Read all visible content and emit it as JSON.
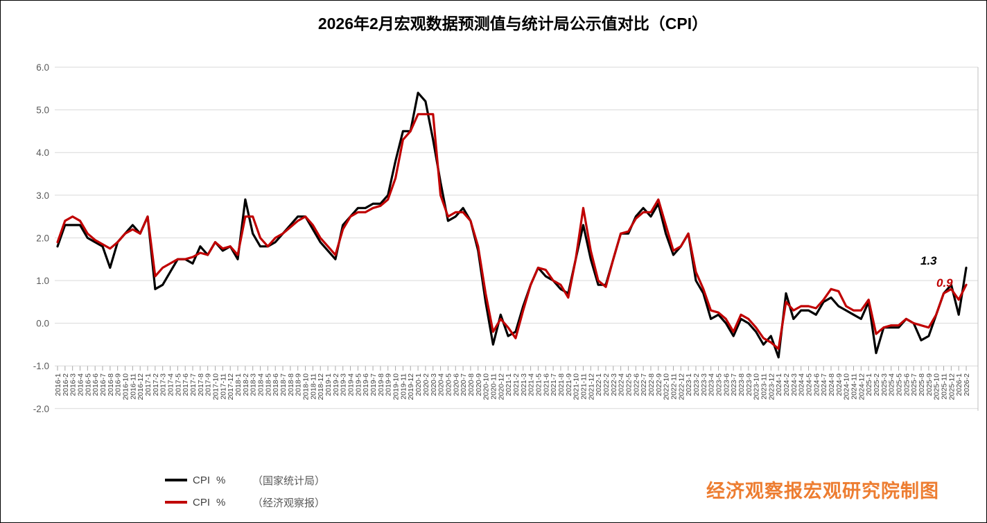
{
  "title": "2026年2月宏观数据预测值与统计局公示值对比（CPI）",
  "watermark": "经济观察报宏观研究院制图",
  "legend": [
    {
      "name": "CPI",
      "unit": "%",
      "source": "（国家统计局）",
      "color": "#000000"
    },
    {
      "name": "CPI",
      "unit": "%",
      "source": "（经济观察报）",
      "color": "#C00000"
    }
  ],
  "annotations": [
    {
      "text": "1.3",
      "series": "国家统计局",
      "color": "#000000"
    },
    {
      "text": "0.9",
      "series": "经济观察报",
      "color": "#C00000"
    }
  ],
  "colors": {
    "official_line": "#000000",
    "forecast_line": "#C00000",
    "gridline": "#D9D9D9",
    "axis_tick": "#A6A6A6",
    "axis_label": "#595959",
    "x_label": "#3F3F3F",
    "watermark": "#ED7D31",
    "background": "#FFFFFF"
  },
  "chart_data": {
    "type": "line",
    "title": "2026年2月宏观数据预测值与统计局公示值对比（CPI）",
    "xlabel": "",
    "ylabel": "",
    "ylim": [
      -2.0,
      6.0
    ],
    "yticks": [
      6.0,
      5.0,
      4.0,
      3.0,
      2.0,
      1.0,
      0.0,
      -1.0,
      -2.0
    ],
    "ytick_labels": [
      "6.0",
      "5.0",
      "4.0",
      "3.0",
      "2.0",
      "1.0",
      "0.0",
      "-1.0",
      "-2.0"
    ],
    "grid": true,
    "legend_position": "bottom-left",
    "x": [
      "2016-1",
      "2016-2",
      "2016-3",
      "2016-4",
      "2016-5",
      "2016-6",
      "2016-7",
      "2016-8",
      "2016-9",
      "2016-10",
      "2016-11",
      "2016-12",
      "2017-1",
      "2017-2",
      "2017-3",
      "2017-4",
      "2017-5",
      "2017-6",
      "2017-7",
      "2017-8",
      "2017-9",
      "2017-10",
      "2017-11",
      "2017-12",
      "2018-1",
      "2018-2",
      "2018-3",
      "2018-4",
      "2018-5",
      "2018-6",
      "2018-7",
      "2018-8",
      "2018-9",
      "2018-10",
      "2018-11",
      "2018-12",
      "2019-1",
      "2019-2",
      "2019-3",
      "2019-4",
      "2019-5",
      "2019-6",
      "2019-7",
      "2019-8",
      "2019-9",
      "2019-10",
      "2019-11",
      "2019-12",
      "2020-1",
      "2020-2",
      "2020-3",
      "2020-4",
      "2020-5",
      "2020-6",
      "2020-7",
      "2020-8",
      "2020-9",
      "2020-10",
      "2020-11",
      "2020-12",
      "2021-1",
      "2021-2",
      "2021-3",
      "2021-4",
      "2021-5",
      "2021-6",
      "2021-7",
      "2021-8",
      "2021-9",
      "2021-10",
      "2021-11",
      "2021-12",
      "2022-1",
      "2022-2",
      "2022-3",
      "2022-4",
      "2022-5",
      "2022-6",
      "2022-7",
      "2022-8",
      "2022-9",
      "2022-10",
      "2022-11",
      "2022-12",
      "2023-1",
      "2023-2",
      "2023-3",
      "2023-4",
      "2023-5",
      "2023-6",
      "2023-7",
      "2023-8",
      "2023-9",
      "2023-10",
      "2023-11",
      "2023-12",
      "2024-1",
      "2024-2",
      "2024-3",
      "2024-4",
      "2024-5",
      "2024-6",
      "2024-7",
      "2024-8",
      "2024-9",
      "2024-10",
      "2024-11",
      "2024-12",
      "2025-1",
      "2025-2",
      "2025-3",
      "2025-4",
      "2025-5",
      "2025-6",
      "2025-7",
      "2025-8",
      "2025-9",
      "2025-10",
      "2025-11",
      "2025-12",
      "2026-1",
      "2026-2"
    ],
    "series": [
      {
        "name": "CPI %（国家统计局）",
        "color": "#000000",
        "values": [
          1.8,
          2.3,
          2.3,
          2.3,
          2.0,
          1.9,
          1.8,
          1.3,
          1.9,
          2.1,
          2.3,
          2.1,
          2.5,
          0.8,
          0.9,
          1.2,
          1.5,
          1.5,
          1.4,
          1.8,
          1.6,
          1.9,
          1.7,
          1.8,
          1.5,
          2.9,
          2.1,
          1.8,
          1.8,
          1.9,
          2.1,
          2.3,
          2.5,
          2.5,
          2.2,
          1.9,
          1.7,
          1.5,
          2.3,
          2.5,
          2.7,
          2.7,
          2.8,
          2.8,
          3.0,
          3.8,
          4.5,
          4.5,
          5.4,
          5.2,
          4.3,
          3.3,
          2.4,
          2.5,
          2.7,
          2.4,
          1.7,
          0.5,
          -0.5,
          0.2,
          -0.3,
          -0.2,
          0.4,
          0.9,
          1.3,
          1.1,
          1.0,
          0.8,
          0.7,
          1.5,
          2.3,
          1.5,
          0.9,
          0.9,
          1.5,
          2.1,
          2.1,
          2.5,
          2.7,
          2.5,
          2.8,
          2.1,
          1.6,
          1.8,
          2.1,
          1.0,
          0.7,
          0.1,
          0.2,
          0.0,
          -0.3,
          0.1,
          0.0,
          -0.2,
          -0.5,
          -0.3,
          -0.8,
          0.7,
          0.1,
          0.3,
          0.3,
          0.2,
          0.5,
          0.6,
          0.4,
          0.3,
          0.2,
          0.1,
          0.5,
          -0.7,
          -0.1,
          -0.1,
          -0.1,
          0.1,
          0.0,
          -0.4,
          -0.3,
          0.2,
          0.7,
          0.9,
          0.2,
          1.3
        ]
      },
      {
        "name": "CPI %（经济观察报）",
        "color": "#C00000",
        "values": [
          1.9,
          2.4,
          2.5,
          2.4,
          2.1,
          1.95,
          1.85,
          1.75,
          1.9,
          2.1,
          2.2,
          2.1,
          2.5,
          1.1,
          1.3,
          1.4,
          1.5,
          1.5,
          1.55,
          1.65,
          1.6,
          1.9,
          1.75,
          1.8,
          1.6,
          2.5,
          2.5,
          2.0,
          1.8,
          2.0,
          2.1,
          2.25,
          2.4,
          2.5,
          2.3,
          2.0,
          1.8,
          1.6,
          2.2,
          2.5,
          2.6,
          2.6,
          2.7,
          2.75,
          2.9,
          3.4,
          4.3,
          4.5,
          4.9,
          4.9,
          4.9,
          3.0,
          2.5,
          2.6,
          2.6,
          2.4,
          1.8,
          0.7,
          -0.2,
          0.1,
          -0.1,
          -0.35,
          0.3,
          0.9,
          1.3,
          1.25,
          1.0,
          0.9,
          0.6,
          1.5,
          2.7,
          1.7,
          1.0,
          0.85,
          1.5,
          2.1,
          2.15,
          2.45,
          2.6,
          2.6,
          2.9,
          2.3,
          1.7,
          1.8,
          2.1,
          1.2,
          0.8,
          0.3,
          0.25,
          0.1,
          -0.2,
          0.2,
          0.1,
          -0.1,
          -0.35,
          -0.45,
          -0.6,
          0.5,
          0.3,
          0.4,
          0.4,
          0.35,
          0.55,
          0.8,
          0.75,
          0.4,
          0.3,
          0.3,
          0.55,
          -0.25,
          -0.1,
          -0.05,
          -0.05,
          0.1,
          0.0,
          -0.05,
          -0.1,
          0.2,
          0.7,
          0.8,
          0.55,
          0.9
        ]
      }
    ]
  }
}
